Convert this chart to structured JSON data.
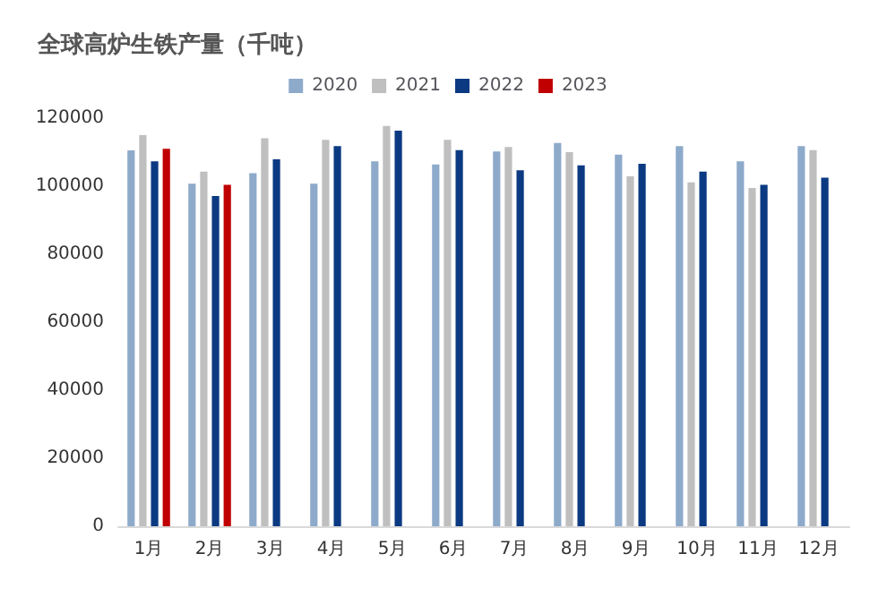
{
  "chart_data": {
    "type": "bar",
    "title": "全球高炉生铁产量（千吨）",
    "categories": [
      "1月",
      "2月",
      "3月",
      "4月",
      "5月",
      "6月",
      "7月",
      "8月",
      "9月",
      "10月",
      "11月",
      "12月"
    ],
    "series": [
      {
        "name": "2020",
        "color": "#8eaacb",
        "values": [
          110500,
          100700,
          103800,
          100700,
          107300,
          106400,
          110200,
          112700,
          109300,
          111800,
          107300,
          111800
        ]
      },
      {
        "name": "2021",
        "color": "#bfbfbf",
        "values": [
          115000,
          104300,
          114100,
          113600,
          117700,
          113600,
          111500,
          110000,
          102900,
          101100,
          99500,
          110600
        ]
      },
      {
        "name": "2022",
        "color": "#0b3a82",
        "values": [
          107300,
          97100,
          107900,
          111800,
          116300,
          110600,
          104700,
          106100,
          106600,
          104300,
          100400,
          102500
        ]
      },
      {
        "name": "2023",
        "color": "#c00000",
        "values": [
          111000,
          100400,
          null,
          null,
          null,
          null,
          null,
          null,
          null,
          null,
          null,
          null
        ]
      }
    ],
    "ylim": [
      0,
      120000
    ],
    "yticks": [
      0,
      20000,
      40000,
      60000,
      80000,
      100000,
      120000
    ],
    "grid": false,
    "legend": "top"
  }
}
